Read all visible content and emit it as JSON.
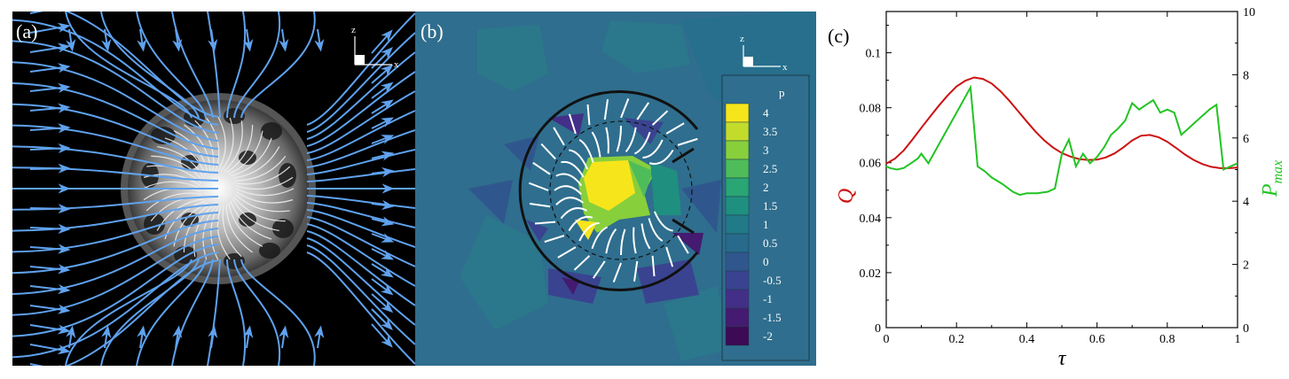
{
  "panel_a": {
    "label": "(a)",
    "axes": {
      "z": "z",
      "x": "x"
    },
    "colors": {
      "background": "#000000",
      "streamline": "#5fa2ee",
      "inner_lines": "#e8e8e8"
    }
  },
  "panel_b": {
    "label": "(b)",
    "axes": {
      "z": "z",
      "x": "x"
    },
    "legend_title": "p",
    "legend_levels": [
      {
        "label": "4",
        "color": "#f7e51b"
      },
      {
        "label": "3.5",
        "color": "#c3dc2c"
      },
      {
        "label": "3",
        "color": "#88cf3c"
      },
      {
        "label": "2.5",
        "color": "#4fbc5a"
      },
      {
        "label": "2",
        "color": "#2aa574"
      },
      {
        "label": "1.5",
        "color": "#1f8f80"
      },
      {
        "label": "1",
        "color": "#217a87"
      },
      {
        "label": "0.5",
        "color": "#276a8c"
      },
      {
        "label": "0",
        "color": "#30578d"
      },
      {
        "label": "-0.5",
        "color": "#3a4390"
      },
      {
        "label": "-1",
        "color": "#432f87"
      },
      {
        "label": "-1.5",
        "color": "#441b70"
      },
      {
        "label": "-2",
        "color": "#3d0a55"
      }
    ],
    "colors": {
      "background": "#2f6e8e",
      "streamline": "#ffffff"
    }
  },
  "chart_data": {
    "type": "line",
    "label": "(c)",
    "xlabel": "τ",
    "ylabel_left": "Q",
    "ylabel_right": "P",
    "ylabel_right_sub": "max",
    "xlim": [
      0,
      1
    ],
    "ylim_left": [
      0,
      0.115
    ],
    "ylim_right": [
      0,
      10
    ],
    "x_ticks": [
      0,
      0.2,
      0.4,
      0.6,
      0.8,
      1
    ],
    "x_tick_labels": [
      "0",
      "0.2",
      "0.4",
      "0.6",
      "0.8",
      "1"
    ],
    "y_left_ticks": [
      0,
      0.02,
      0.04,
      0.06,
      0.08,
      0.1
    ],
    "y_left_tick_labels": [
      "0",
      "0.02",
      "0.04",
      "0.06",
      "0.08",
      "0.1"
    ],
    "y_right_ticks": [
      0,
      2,
      4,
      6,
      8,
      10
    ],
    "y_right_tick_labels": [
      "0",
      "2",
      "4",
      "6",
      "8",
      "10"
    ],
    "series": [
      {
        "axis": "left",
        "color": "#cc1111",
        "x": [
          0,
          0.025,
          0.05,
          0.075,
          0.1,
          0.125,
          0.15,
          0.175,
          0.2,
          0.225,
          0.25,
          0.275,
          0.3,
          0.325,
          0.35,
          0.375,
          0.4,
          0.425,
          0.45,
          0.475,
          0.5,
          0.525,
          0.55,
          0.575,
          0.6,
          0.625,
          0.65,
          0.675,
          0.7,
          0.725,
          0.75,
          0.775,
          0.8,
          0.825,
          0.85,
          0.875,
          0.9,
          0.925,
          0.95,
          0.975,
          1
        ],
        "values": [
          0.0597,
          0.0615,
          0.0645,
          0.0685,
          0.0727,
          0.0768,
          0.0808,
          0.0845,
          0.0877,
          0.0898,
          0.091,
          0.0905,
          0.0888,
          0.086,
          0.0826,
          0.0788,
          0.075,
          0.0713,
          0.0681,
          0.0655,
          0.0635,
          0.0622,
          0.0613,
          0.061,
          0.0611,
          0.0619,
          0.0634,
          0.0656,
          0.0681,
          0.0698,
          0.0701,
          0.0693,
          0.0676,
          0.0654,
          0.063,
          0.061,
          0.0595,
          0.0585,
          0.058,
          0.058,
          0.0582
        ]
      },
      {
        "axis": "right",
        "color": "#22c422",
        "x": [
          0,
          0.01,
          0.03,
          0.05,
          0.07,
          0.09,
          0.1,
          0.12,
          0.15,
          0.18,
          0.21,
          0.24,
          0.26,
          0.28,
          0.3,
          0.33,
          0.36,
          0.38,
          0.4,
          0.43,
          0.46,
          0.48,
          0.5,
          0.52,
          0.54,
          0.56,
          0.58,
          0.6,
          0.62,
          0.64,
          0.66,
          0.68,
          0.7,
          0.72,
          0.74,
          0.76,
          0.78,
          0.8,
          0.82,
          0.84,
          0.86,
          0.88,
          0.9,
          0.92,
          0.94,
          0.96,
          0.98,
          1
        ],
        "values": [
          5.1,
          5.05,
          5.0,
          5.05,
          5.2,
          5.35,
          5.5,
          5.2,
          5.8,
          6.4,
          7.0,
          7.6,
          5.1,
          4.95,
          4.75,
          4.55,
          4.3,
          4.2,
          4.25,
          4.25,
          4.3,
          4.4,
          5.5,
          5.95,
          5.1,
          5.5,
          5.2,
          5.4,
          5.7,
          6.1,
          6.3,
          6.55,
          7.1,
          6.9,
          7.05,
          7.2,
          6.8,
          6.9,
          6.8,
          6.1,
          6.3,
          6.5,
          6.7,
          6.9,
          7.05,
          5.0,
          5.1,
          5.2
        ]
      }
    ]
  }
}
